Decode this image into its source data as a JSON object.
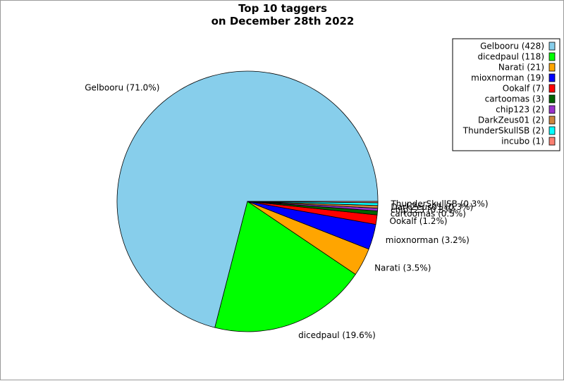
{
  "chart_data": {
    "type": "pie",
    "title_line1": "Top 10 taggers",
    "title_line2": "on December 28th 2022",
    "legend_position": "top-right",
    "slices": [
      {
        "name": "Gelbooru",
        "value": 428,
        "percent_label": "Gelbooru (71.0%)",
        "legend_label": "Gelbooru (428)",
        "color": "#87ceeb"
      },
      {
        "name": "dicedpaul",
        "value": 118,
        "percent_label": "dicedpaul (19.6%)",
        "legend_label": "dicedpaul (118)",
        "color": "#00ff00"
      },
      {
        "name": "Narati",
        "value": 21,
        "percent_label": "Narati (3.5%)",
        "legend_label": "Narati (21)",
        "color": "#ffa500"
      },
      {
        "name": "mioxnorman",
        "value": 19,
        "percent_label": "mioxnorman (3.2%)",
        "legend_label": "mioxnorman (19)",
        "color": "#0000ff"
      },
      {
        "name": "Ookalf",
        "value": 7,
        "percent_label": "Ookalf (1.2%)",
        "legend_label": "Ookalf (7)",
        "color": "#ff0000"
      },
      {
        "name": "cartoomas",
        "value": 3,
        "percent_label": "cartoomas (0.5%)",
        "legend_label": "cartoomas (3)",
        "color": "#006400"
      },
      {
        "name": "chip123",
        "value": 2,
        "percent_label": "chip123 (0.3%)",
        "legend_label": "chip123 (2)",
        "color": "#9932cc"
      },
      {
        "name": "DarkZeus01",
        "value": 2,
        "percent_label": "DarkZeus01 (0.3%)",
        "legend_label": "DarkZeus01 (2)",
        "color": "#cd853f"
      },
      {
        "name": "ThunderSkullSB",
        "value": 2,
        "percent_label": "ThunderSkullSB (0.3%)",
        "legend_label": "ThunderSkullSB (2)",
        "color": "#00ffff"
      },
      {
        "name": "incubo",
        "value": 1,
        "percent_label": "",
        "legend_label": "incubo (1)",
        "color": "#fa8072"
      }
    ]
  }
}
